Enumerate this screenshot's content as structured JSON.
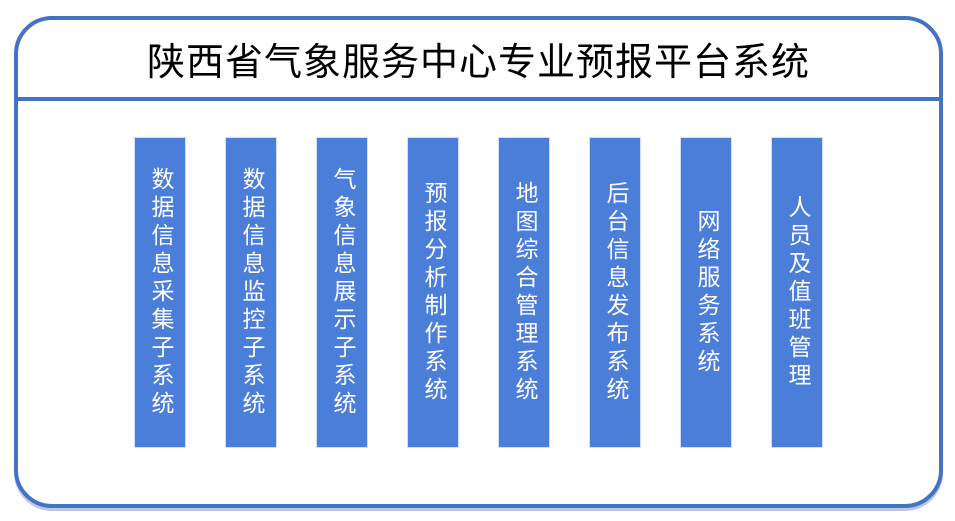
{
  "title": "陕西省气象服务中心专业预报平台系统",
  "colors": {
    "border_color": "#4472C4",
    "bar_color": "#4A7ED9",
    "bar_text_color": "#FFFFFF",
    "title_color": "#000000",
    "bg_color": "#FFFFFF"
  },
  "subsystems": [
    {
      "label": "数据信息采集子系统"
    },
    {
      "label": "数据信息监控子系统"
    },
    {
      "label": "气象信息展示子系统"
    },
    {
      "label": "预报分析制作系统"
    },
    {
      "label": "地图综合管理系统"
    },
    {
      "label": "后台信息发布系统"
    },
    {
      "label": "网络服务系统"
    },
    {
      "label": "人员及值班管理"
    }
  ]
}
